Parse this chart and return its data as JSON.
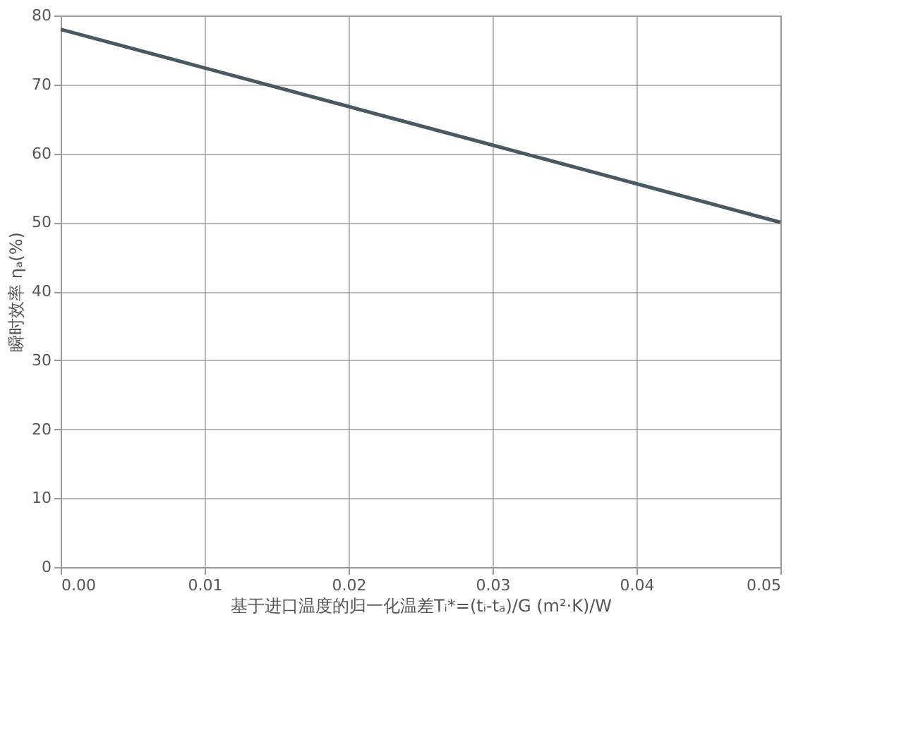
{
  "chart_data": {
    "type": "line",
    "xlabel": "基于进口温度的归一化温差Tᵢ*=(tᵢ-tₐ)/G (m²·K)/W",
    "ylabel": "瞬时效率 ηₐ(%)",
    "x": [
      0,
      0.01,
      0.02,
      0.03,
      0.04,
      0.05
    ],
    "series": [
      {
        "color": "#4a5862",
        "values": [
          78,
          72.4,
          66.8,
          61.2,
          55.6,
          50
        ]
      }
    ],
    "xlim": [
      0,
      0.05
    ],
    "xticks": [
      {
        "value": 0,
        "label": "0.00"
      },
      0.01,
      0.02,
      0.03,
      0.04,
      0.05
    ],
    "ylim": [
      0,
      80
    ],
    "yticks": [
      0,
      10,
      20,
      30,
      40,
      50,
      60,
      70,
      80
    ],
    "grid": true,
    "marker": "none",
    "line_style": "solid"
  }
}
